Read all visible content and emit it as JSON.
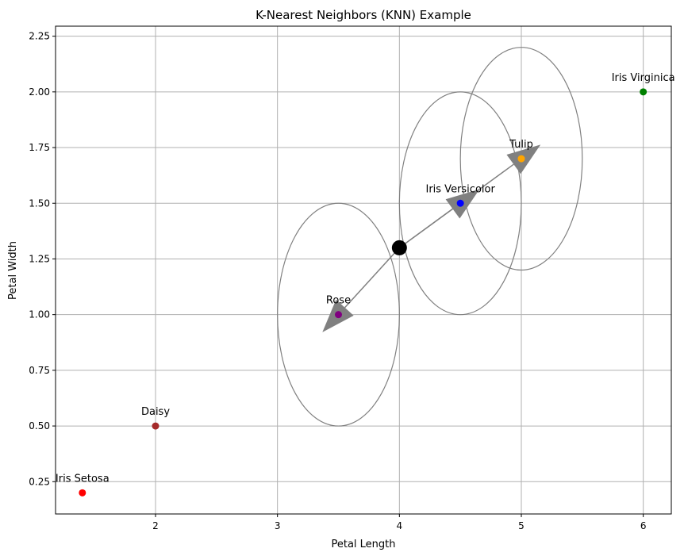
{
  "chart_data": {
    "type": "scatter",
    "title": "K-Nearest Neighbors (KNN) Example",
    "xlabel": "Petal Length",
    "ylabel": "Petal Width",
    "xlim": [
      1.18,
      6.23
    ],
    "ylim": [
      0.105,
      2.295
    ],
    "xticks": [
      2,
      3,
      4,
      5,
      6
    ],
    "xtick_labels": [
      "2",
      "3",
      "4",
      "5",
      "6"
    ],
    "yticks": [
      0.25,
      0.5,
      0.75,
      1.0,
      1.25,
      1.5,
      1.75,
      2.0,
      2.25
    ],
    "ytick_labels": [
      "0.25",
      "0.50",
      "0.75",
      "1.00",
      "1.25",
      "1.50",
      "1.75",
      "2.00",
      "2.25"
    ],
    "grid": true,
    "points": [
      {
        "label": "Iris Setosa",
        "x": 1.4,
        "y": 0.2,
        "color": "#ff0000"
      },
      {
        "label": "Iris Versicolor",
        "x": 4.5,
        "y": 1.5,
        "color": "#0000ff"
      },
      {
        "label": "Iris Virginica",
        "x": 6.0,
        "y": 2.0,
        "color": "#008000"
      },
      {
        "label": "Rose",
        "x": 3.5,
        "y": 1.0,
        "color": "#800080"
      },
      {
        "label": "Tulip",
        "x": 5.0,
        "y": 1.7,
        "color": "#ffa500"
      },
      {
        "label": "Daisy",
        "x": 2.0,
        "y": 0.5,
        "color": "#a52a2a"
      }
    ],
    "query_point": {
      "x": 4.0,
      "y": 1.3,
      "color": "#000000"
    },
    "neighbors": [
      {
        "x": 3.5,
        "y": 1.0,
        "radius": 0.5
      },
      {
        "x": 4.5,
        "y": 1.5,
        "radius": 0.5
      },
      {
        "x": 5.0,
        "y": 1.7,
        "radius": 0.5
      }
    ],
    "neighbor_color": "#808080"
  }
}
